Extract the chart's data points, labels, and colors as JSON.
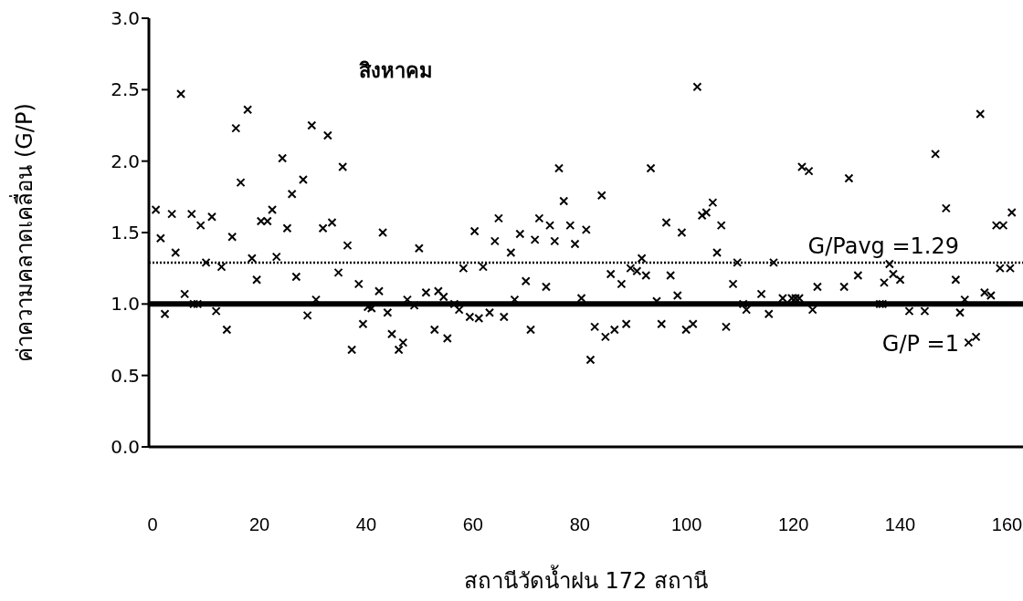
{
  "chart_data": {
    "type": "scatter",
    "title": "สิงหาคม",
    "xlabel": "สถานีวัดน้ำฝน 172 สถานี",
    "ylabel": "ค่าความคลาดเคลื่อน (G/P)",
    "xlim": [
      -0.7,
      163
    ],
    "xticks": [
      0,
      20,
      40,
      60,
      80,
      100,
      120,
      140,
      160
    ],
    "ylim": [
      0,
      3
    ],
    "yticks": [
      {
        "value": 0,
        "label": "0.0"
      },
      {
        "value": 0.5,
        "label": "0.5"
      },
      {
        "value": 1,
        "label": "1.0"
      },
      {
        "value": 1.5,
        "label": "1.5"
      },
      {
        "value": 2,
        "label": "2.0"
      },
      {
        "value": 2.5,
        "label": "2.5"
      },
      {
        "value": 3,
        "label": "3.0"
      }
    ],
    "marker": "cross",
    "ref_lines": [
      {
        "axis": "y",
        "value": 1,
        "label": "G/P =1",
        "color": "#000000",
        "line_style": "solid"
      },
      {
        "axis": "y",
        "value": 1.29,
        "label": "G/Pavg =1.29",
        "color": "#000000",
        "line_style": "dotted"
      }
    ],
    "series": [
      {
        "color": "#000000",
        "x": [
          0.6,
          1.5,
          2.3,
          3.6,
          4.3,
          5.3,
          6.0,
          7.3,
          7.7,
          8.4,
          9.0,
          10.0,
          11.1,
          11.9,
          12.9,
          13.9,
          14.9,
          15.6,
          16.5,
          17.8,
          18.6,
          19.5,
          20.3,
          21.5,
          22.4,
          23.2,
          24.3,
          25.2,
          26.1,
          26.9,
          28.2,
          29.0,
          29.8,
          30.6,
          31.9,
          32.8,
          33.6,
          34.8,
          35.6,
          36.5,
          37.3,
          38.6,
          39.4,
          40.3,
          41.0,
          42.4,
          43.1,
          44.0,
          44.8,
          46.1,
          46.9,
          47.7,
          49.0,
          49.9,
          51.2,
          52.8,
          53.5,
          54.5,
          55.2,
          56.5,
          57.4,
          58.2,
          59.4,
          60.3,
          61.1,
          61.9,
          63.1,
          64.1,
          64.8,
          65.8,
          67.1,
          67.8,
          68.8,
          69.9,
          70.8,
          71.6,
          72.4,
          73.7,
          74.4,
          75.3,
          76.1,
          77.0,
          78.2,
          79.1,
          80.3,
          81.2,
          82.0,
          82.8,
          84.1,
          84.8,
          85.8,
          86.5,
          87.8,
          88.7,
          89.5,
          90.7,
          91.6,
          92.4,
          93.3,
          94.4,
          95.3,
          96.2,
          97.0,
          98.3,
          99.1,
          99.9,
          101.2,
          102.0,
          102.9,
          103.7,
          104.9,
          105.7,
          106.5,
          107.4,
          108.7,
          109.5,
          110.6,
          111.2,
          114.0,
          115.4,
          116.3,
          118.0,
          119.7,
          120.4,
          121.1,
          121.6,
          122.9,
          123.6,
          124.5,
          129.5,
          130.4,
          132.1,
          136.2,
          136.7,
          137.0,
          138.0,
          138.7,
          140.0,
          141.7,
          144.6,
          146.6,
          148.6,
          150.4,
          151.2,
          152.1,
          152.8,
          154.2,
          155.0,
          155.8,
          157.0,
          158.0,
          158.7,
          159.3,
          160.6,
          160.9
        ],
        "values": [
          1.66,
          1.46,
          0.93,
          1.63,
          1.36,
          2.47,
          1.07,
          1.63,
          1.0,
          1.0,
          1.55,
          1.29,
          1.61,
          0.95,
          1.26,
          0.82,
          1.47,
          2.23,
          1.85,
          2.36,
          1.32,
          1.17,
          1.58,
          1.58,
          1.66,
          1.33,
          2.02,
          1.53,
          1.77,
          1.19,
          1.87,
          0.92,
          2.25,
          1.03,
          1.53,
          2.18,
          1.57,
          1.22,
          1.96,
          1.41,
          0.68,
          1.14,
          0.86,
          0.98,
          0.97,
          1.09,
          1.5,
          0.94,
          0.79,
          0.68,
          0.73,
          1.03,
          0.99,
          1.39,
          1.08,
          0.82,
          1.09,
          1.05,
          0.76,
          1.0,
          0.96,
          1.25,
          0.91,
          1.51,
          0.9,
          1.26,
          0.94,
          1.44,
          1.6,
          0.91,
          1.36,
          1.03,
          1.49,
          1.16,
          0.82,
          1.45,
          1.6,
          1.12,
          1.55,
          1.44,
          1.95,
          1.72,
          1.55,
          1.42,
          1.04,
          1.52,
          0.61,
          0.84,
          1.76,
          0.77,
          1.21,
          0.82,
          1.14,
          0.86,
          1.25,
          1.23,
          1.32,
          1.2,
          1.95,
          1.02,
          0.86,
          1.57,
          1.2,
          1.06,
          1.5,
          0.82,
          0.86,
          2.52,
          1.62,
          1.64,
          1.71,
          1.36,
          1.55,
          0.84,
          1.14,
          1.29,
          1.0,
          0.96,
          1.07,
          0.93,
          1.29,
          1.04,
          1.04,
          1.04,
          1.04,
          1.96,
          1.93,
          0.96,
          1.12,
          1.12,
          1.88,
          1.2,
          1.0,
          1.0,
          1.15,
          1.28,
          1.21,
          1.17,
          0.95,
          0.95,
          2.05,
          1.67,
          1.17,
          0.94,
          1.03,
          0.73,
          0.77,
          2.33,
          1.08,
          1.06,
          1.55,
          1.25,
          1.55,
          1.25,
          1.64
        ]
      }
    ]
  }
}
